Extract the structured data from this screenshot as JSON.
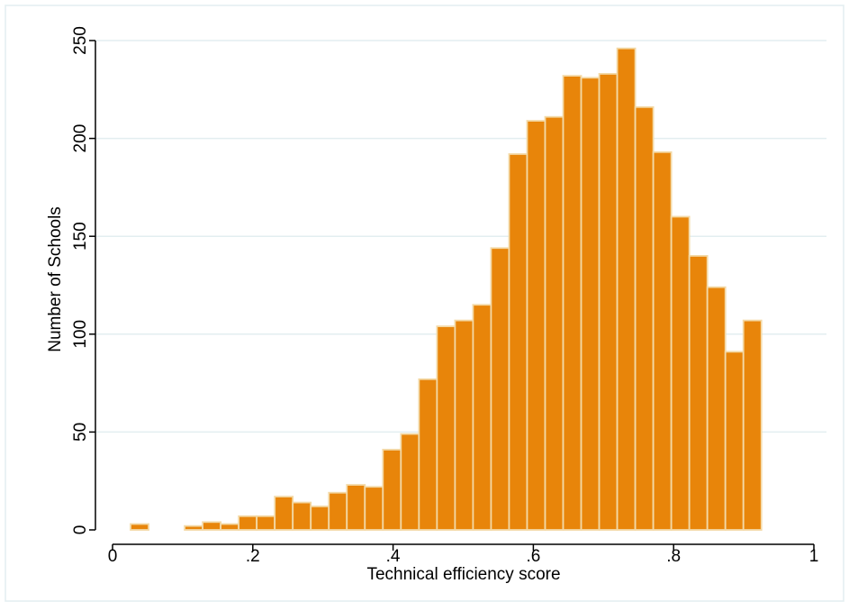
{
  "chart_data": {
    "type": "bar",
    "xlabel": "Technical efficiency score",
    "ylabel": "Number of Schools",
    "xlim": [
      0,
      1
    ],
    "ylim": [
      0,
      250
    ],
    "x_ticks": [
      0,
      0.2,
      0.4,
      0.6,
      0.8,
      1
    ],
    "x_tick_labels": [
      "0",
      ".2",
      ".4",
      ".6",
      ".8",
      "1"
    ],
    "y_ticks": [
      0,
      50,
      100,
      150,
      200,
      250
    ],
    "y_tick_labels": [
      "0",
      "50",
      "100",
      "150",
      "200",
      "250"
    ],
    "grid": true,
    "bins": [
      {
        "start": 0.0257,
        "end": 0.0514,
        "count": 3
      },
      {
        "start": 0.0514,
        "end": 0.0771,
        "count": 0
      },
      {
        "start": 0.0771,
        "end": 0.1028,
        "count": 0
      },
      {
        "start": 0.1028,
        "end": 0.1285,
        "count": 2
      },
      {
        "start": 0.1285,
        "end": 0.1542,
        "count": 4
      },
      {
        "start": 0.1542,
        "end": 0.1799,
        "count": 3
      },
      {
        "start": 0.1799,
        "end": 0.2056,
        "count": 7
      },
      {
        "start": 0.2056,
        "end": 0.2313,
        "count": 7
      },
      {
        "start": 0.2313,
        "end": 0.257,
        "count": 17
      },
      {
        "start": 0.257,
        "end": 0.2827,
        "count": 14
      },
      {
        "start": 0.2827,
        "end": 0.3084,
        "count": 12
      },
      {
        "start": 0.3084,
        "end": 0.3341,
        "count": 19
      },
      {
        "start": 0.3341,
        "end": 0.3598,
        "count": 23
      },
      {
        "start": 0.3598,
        "end": 0.3855,
        "count": 22
      },
      {
        "start": 0.3855,
        "end": 0.4112,
        "count": 41
      },
      {
        "start": 0.4112,
        "end": 0.4369,
        "count": 49
      },
      {
        "start": 0.4369,
        "end": 0.4626,
        "count": 77
      },
      {
        "start": 0.4626,
        "end": 0.4883,
        "count": 104
      },
      {
        "start": 0.4883,
        "end": 0.514,
        "count": 107
      },
      {
        "start": 0.514,
        "end": 0.5397,
        "count": 115
      },
      {
        "start": 0.5397,
        "end": 0.5654,
        "count": 144
      },
      {
        "start": 0.5654,
        "end": 0.5911,
        "count": 192
      },
      {
        "start": 0.5911,
        "end": 0.6168,
        "count": 209
      },
      {
        "start": 0.6168,
        "end": 0.6425,
        "count": 211
      },
      {
        "start": 0.6425,
        "end": 0.6682,
        "count": 232
      },
      {
        "start": 0.6682,
        "end": 0.6939,
        "count": 231
      },
      {
        "start": 0.6939,
        "end": 0.7196,
        "count": 233
      },
      {
        "start": 0.7196,
        "end": 0.7453,
        "count": 246
      },
      {
        "start": 0.7453,
        "end": 0.771,
        "count": 216
      },
      {
        "start": 0.771,
        "end": 0.7967,
        "count": 193
      },
      {
        "start": 0.7967,
        "end": 0.8224,
        "count": 160
      },
      {
        "start": 0.8224,
        "end": 0.8481,
        "count": 140
      },
      {
        "start": 0.8481,
        "end": 0.8738,
        "count": 124
      },
      {
        "start": 0.8738,
        "end": 0.8995,
        "count": 91
      },
      {
        "start": 0.8995,
        "end": 0.9252,
        "count": 107
      }
    ],
    "bar_color": "#E8850A",
    "bar_outline_color": "#F3D9A6",
    "grid_color": "#E3EEF0",
    "frame_color": "#E3EEF0"
  }
}
